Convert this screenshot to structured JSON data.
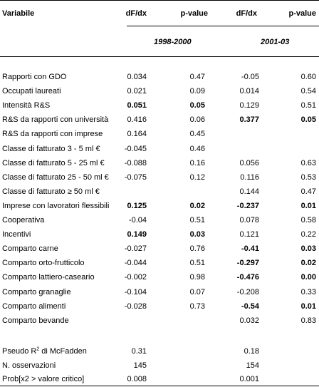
{
  "header": {
    "variable_label": "Variabile",
    "col1_label": "dF/dx",
    "col2_label": "p-value",
    "col3_label": "dF/dx",
    "col4_label": "p-value",
    "period1": "1998-2000",
    "period2": "2001-03"
  },
  "rows": [
    {
      "label": "Rapporti con GDO",
      "v1": "0.034",
      "v2": "0.47",
      "v3": "-0.05",
      "v4": "0.60",
      "b1": false,
      "b2": false
    },
    {
      "label": "Occupati laureati",
      "v1": "0.021",
      "v2": "0.09",
      "v3": "0.014",
      "v4": "0.54",
      "b1": false,
      "b2": false
    },
    {
      "label": "Intensità R&S",
      "v1": "0.051",
      "v2": "0.05",
      "v3": "0.129",
      "v4": "0.51",
      "b1": true,
      "b2": false
    },
    {
      "label": "R&S da rapporti con università",
      "v1": "0.416",
      "v2": "0.06",
      "v3": "0.377",
      "v4": "0.05",
      "b1": false,
      "b2": true
    },
    {
      "label": "R&S da rapporti con imprese",
      "v1": "0.164",
      "v2": "0.45",
      "v3": "",
      "v4": "",
      "b1": false,
      "b2": false
    },
    {
      "label": "Classe di fatturato 3 - 5 ml €",
      "v1": "-0.045",
      "v2": "0.46",
      "v3": "",
      "v4": "",
      "b1": false,
      "b2": false
    },
    {
      "label": "Classe di fatturato 5 - 25 ml €",
      "v1": "-0.088",
      "v2": "0.16",
      "v3": "0.056",
      "v4": "0.63",
      "b1": false,
      "b2": false
    },
    {
      "label": "Classe di fatturato 25 - 50 ml €",
      "v1": "-0.075",
      "v2": "0.12",
      "v3": "0.116",
      "v4": "0.53",
      "b1": false,
      "b2": false
    },
    {
      "label": "Classe di fatturato ≥ 50 ml €",
      "v1": "",
      "v2": "",
      "v3": "0.144",
      "v4": "0.47",
      "b1": false,
      "b2": false
    },
    {
      "label": "Imprese con lavoratori flessibili",
      "v1": "0.125",
      "v2": "0.02",
      "v3": "-0.237",
      "v4": "0.01",
      "b1": true,
      "b2": true
    },
    {
      "label": "Cooperativa",
      "v1": "-0.04",
      "v2": "0.51",
      "v3": "0.078",
      "v4": "0.58",
      "b1": false,
      "b2": false
    },
    {
      "label": "Incentivi",
      "v1": "0.149",
      "v2": "0.03",
      "v3": "0.121",
      "v4": "0.22",
      "b1": true,
      "b2": false
    },
    {
      "label": "Comparto carne",
      "v1": "-0.027",
      "v2": "0.76",
      "v3": "-0.41",
      "v4": "0.03",
      "b1": false,
      "b2": true
    },
    {
      "label": "Comparto orto-frutticolo",
      "v1": "-0.044",
      "v2": "0.51",
      "v3": "-0.297",
      "v4": "0.02",
      "b1": false,
      "b2": true
    },
    {
      "label": "Comparto lattiero-caseario",
      "v1": "-0.002",
      "v2": "0.98",
      "v3": "-0.476",
      "v4": "0.00",
      "b1": false,
      "b2": true
    },
    {
      "label": "Comparto granaglie",
      "v1": "-0.104",
      "v2": "0.07",
      "v3": "-0.208",
      "v4": "0.33",
      "b1": false,
      "b2": false
    },
    {
      "label": "Comparto alimenti",
      "v1": "-0.028",
      "v2": "0.73",
      "v3": "-0.54",
      "v4": "0.01",
      "b1": false,
      "b2": true
    },
    {
      "label": "Comparto bevande",
      "v1": "",
      "v2": "",
      "v3": "0.032",
      "v4": "0.83",
      "b1": false,
      "b2": false
    }
  ],
  "footer": [
    {
      "label": "Pseudo R",
      "sup": "2",
      "label_suffix": " di McFadden",
      "v1": "0.31",
      "v3": "0.18"
    },
    {
      "label": "N. osservazioni",
      "sup": "",
      "label_suffix": "",
      "v1": "145",
      "v3": "154"
    },
    {
      "label": "Prob[x2 > valore critico]",
      "sup": "",
      "label_suffix": "",
      "v1": "0.008",
      "v3": "0.001"
    }
  ]
}
